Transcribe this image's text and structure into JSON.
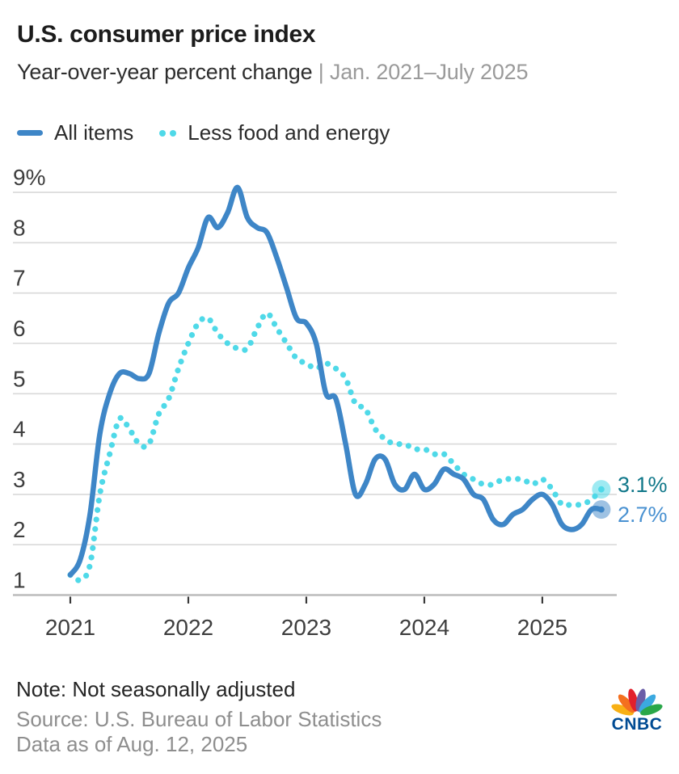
{
  "header": {
    "title": "U.S. consumer price index",
    "subtitle": "Year-over-year percent change",
    "subtitle_separator": "|",
    "subtitle_range": "Jan. 2021–July 2025"
  },
  "legend": [
    {
      "label": "All items",
      "color": "#3e86c7",
      "style": "solid"
    },
    {
      "label": "Less food and energy",
      "color": "#4fd9e8",
      "style": "dotted"
    }
  ],
  "chart_data": {
    "type": "line",
    "x_unit": "month",
    "x_range": "Jan. 2021 – July 2025",
    "x_tick_labels": [
      "2021",
      "2022",
      "2023",
      "2024",
      "2025"
    ],
    "x_tick_month_indices": [
      0,
      12,
      24,
      36,
      48
    ],
    "y_tick_labels": [
      "9%",
      "8",
      "7",
      "6",
      "5",
      "4",
      "3",
      "2",
      "1"
    ],
    "y_tick_values": [
      9,
      8,
      7,
      6,
      5,
      4,
      3,
      2,
      1
    ],
    "ylim": [
      1,
      9
    ],
    "grid": "horizontal",
    "legend_position": "top-left",
    "series": [
      {
        "name": "All items",
        "style": "solid",
        "color": "#3e86c7",
        "end_label": "2.7%",
        "end_label_color": "#4991d1",
        "values": [
          1.4,
          1.7,
          2.6,
          4.2,
          5.0,
          5.4,
          5.4,
          5.3,
          5.4,
          6.2,
          6.8,
          7.0,
          7.5,
          7.9,
          8.5,
          8.3,
          8.6,
          9.1,
          8.5,
          8.3,
          8.2,
          7.7,
          7.1,
          6.5,
          6.4,
          6.0,
          5.0,
          4.9,
          4.0,
          3.0,
          3.2,
          3.7,
          3.7,
          3.2,
          3.1,
          3.4,
          3.1,
          3.2,
          3.5,
          3.4,
          3.3,
          3.0,
          2.9,
          2.5,
          2.4,
          2.6,
          2.7,
          2.9,
          3.0,
          2.8,
          2.4,
          2.3,
          2.4,
          2.7,
          2.7
        ]
      },
      {
        "name": "Less food and energy",
        "style": "dotted",
        "color": "#4fd9e8",
        "end_label": "3.1%",
        "end_label_color": "#11788a",
        "values": [
          1.4,
          1.3,
          1.6,
          3.0,
          3.8,
          4.5,
          4.3,
          4.0,
          4.0,
          4.6,
          4.9,
          5.5,
          6.0,
          6.4,
          6.5,
          6.2,
          6.0,
          5.9,
          5.9,
          6.3,
          6.6,
          6.3,
          6.0,
          5.7,
          5.6,
          5.5,
          5.6,
          5.5,
          5.3,
          4.8,
          4.7,
          4.3,
          4.1,
          4.0,
          4.0,
          3.9,
          3.9,
          3.8,
          3.8,
          3.6,
          3.4,
          3.3,
          3.2,
          3.2,
          3.3,
          3.3,
          3.3,
          3.2,
          3.3,
          3.1,
          2.8,
          2.8,
          2.8,
          2.9,
          3.1
        ]
      }
    ]
  },
  "footer": {
    "note": "Note: Not seasonally adjusted",
    "source": "Source: U.S. Bureau of Labor Statistics",
    "data_as_of": "Data as of Aug. 12, 2025",
    "logo_text": "CNBC",
    "logo_text_color": "#004b93",
    "peacock_colors": [
      "#f8b014",
      "#f4701f",
      "#e2202c",
      "#6a5ea8",
      "#3ba9e0",
      "#2aa749"
    ]
  }
}
